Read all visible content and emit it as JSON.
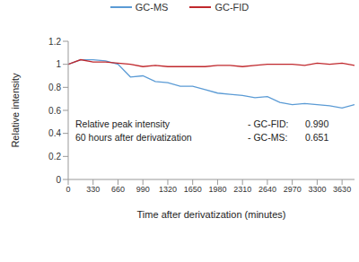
{
  "chart_data": {
    "type": "line",
    "x_label": "Time after derivatization (minutes)",
    "y_label": "Relative intensity",
    "x": [
      0,
      165,
      330,
      495,
      660,
      825,
      990,
      1155,
      1320,
      1485,
      1650,
      1815,
      1980,
      2145,
      2310,
      2475,
      2640,
      2805,
      2970,
      3135,
      3300,
      3465,
      3630,
      3795
    ],
    "series": [
      {
        "name": "GC-MS",
        "color": "#5b9bd5",
        "values": [
          1.0,
          1.04,
          1.04,
          1.03,
          1.0,
          0.89,
          0.9,
          0.85,
          0.84,
          0.81,
          0.81,
          0.78,
          0.75,
          0.74,
          0.73,
          0.71,
          0.72,
          0.67,
          0.65,
          0.66,
          0.65,
          0.64,
          0.62,
          0.65
        ]
      },
      {
        "name": "GC-FID",
        "color": "#c0282d",
        "values": [
          1.0,
          1.04,
          1.02,
          1.02,
          1.01,
          1.0,
          0.98,
          0.99,
          0.98,
          0.98,
          0.98,
          0.98,
          0.99,
          0.99,
          0.98,
          0.99,
          1.0,
          1.0,
          1.0,
          0.99,
          1.01,
          1.0,
          1.01,
          0.99
        ]
      }
    ],
    "xlim": [
      0,
      3795
    ],
    "xticks": [
      0,
      330,
      660,
      990,
      1320,
      1650,
      1980,
      2310,
      2640,
      2970,
      3300,
      3630
    ],
    "ylim": [
      0,
      1.2
    ],
    "yticks": [
      0,
      0.2,
      0.4,
      0.6,
      0.8,
      1,
      1.2
    ],
    "grid": false,
    "legend": "top",
    "annotations": {
      "lines": [
        "Relative peak intensity",
        "60 hours after derivatization"
      ],
      "items": [
        {
          "label": "- GC-FID:",
          "value": "0.990"
        },
        {
          "label": "- GC-MS:",
          "value": "0.651"
        }
      ]
    }
  }
}
